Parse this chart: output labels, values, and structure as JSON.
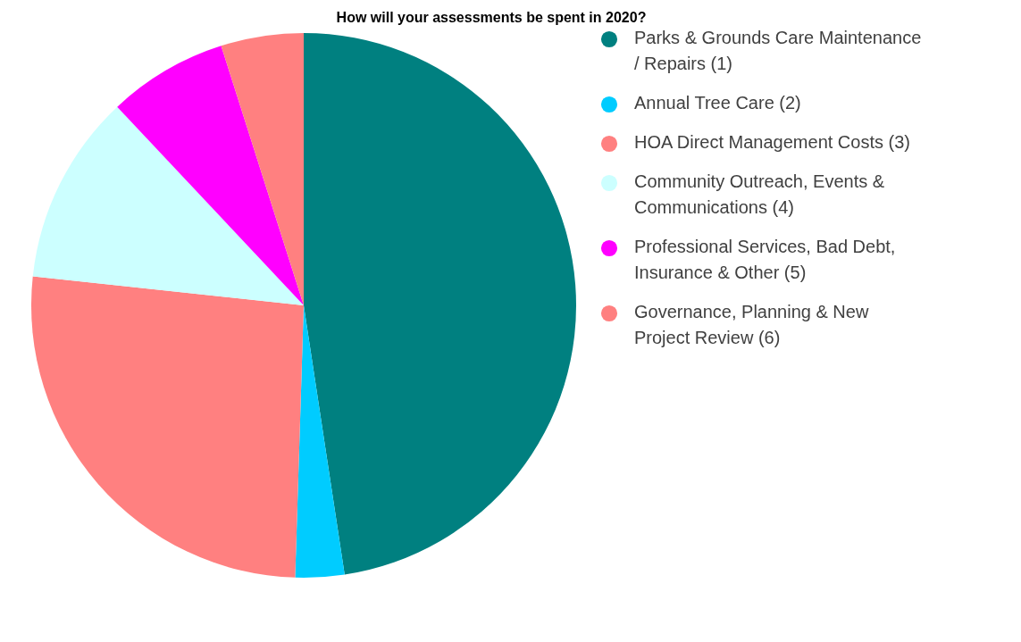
{
  "chart_data": {
    "type": "pie",
    "title": "How will your assessments be spent in 2020?",
    "categories": [
      "Parks & Grounds Care Maintenance / Repairs (1)",
      "Annual Tree Care (2)",
      "HOA Direct Management Costs (3)",
      "Community Outreach, Events & Communications (4)",
      "Professional Services, Bad Debt, Insurance & Other (5)",
      "Governance, Planning & New Project Review (6)"
    ],
    "values": [
      47.6,
      2.9,
      26.2,
      11.3,
      7.1,
      4.9
    ],
    "colors": [
      "#008080",
      "#00ccff",
      "#ff8080",
      "#ccffff",
      "#ff00ff",
      "#ff8080"
    ],
    "legend": "right"
  }
}
